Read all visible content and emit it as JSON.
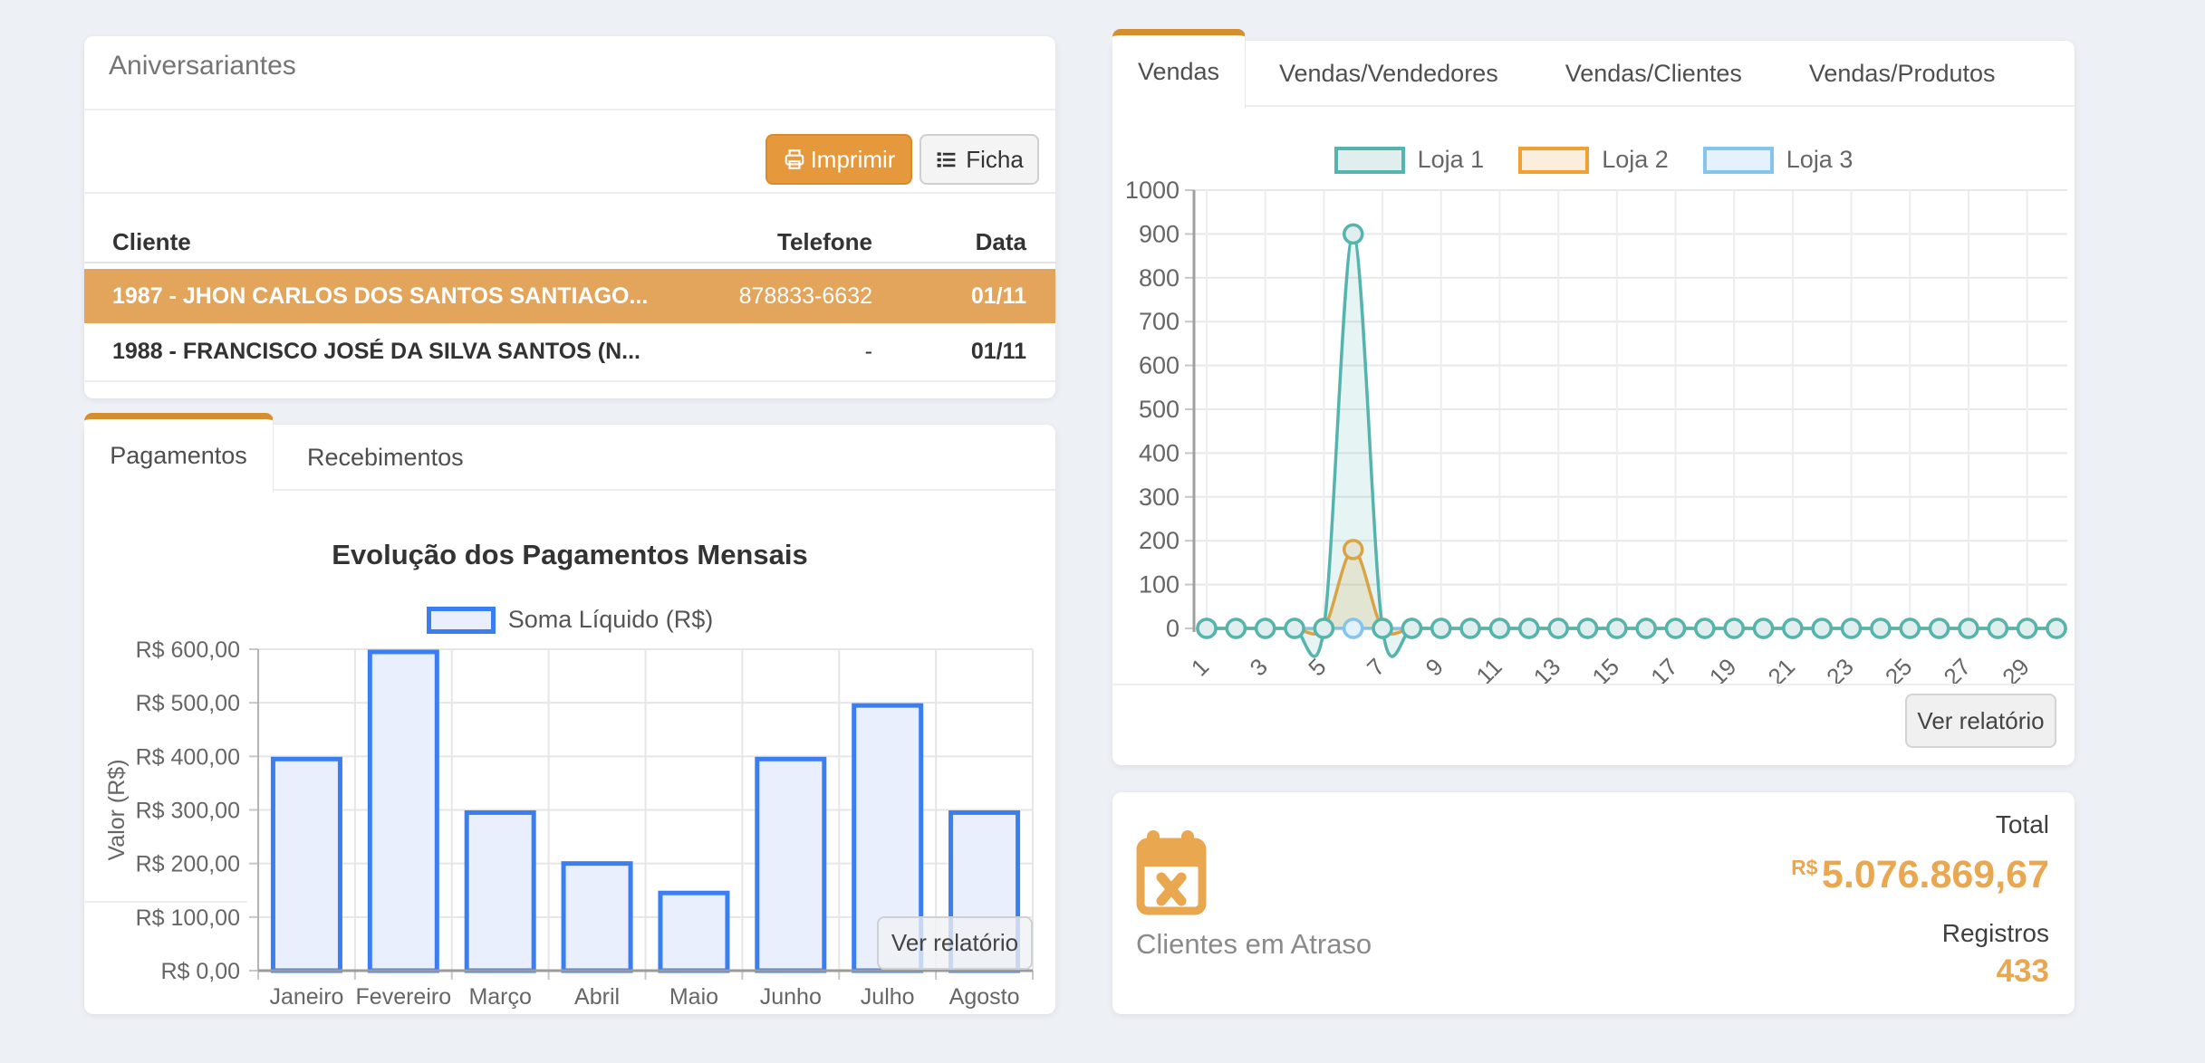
{
  "page": {
    "background": "#edf0f5",
    "accent_orange": "#d68f2f"
  },
  "birthdays": {
    "title": "Aniversariantes",
    "print_label": "Imprimir",
    "ficha_label": "Ficha",
    "table": {
      "headers": [
        "Cliente",
        "Telefone",
        "Data"
      ],
      "rows": [
        {
          "cliente": "1987 - JHON CARLOS DOS SANTOS SANTIAGO...",
          "telefone": "878833-6632",
          "data": "01/11",
          "selected": true
        },
        {
          "cliente": "1988 - FRANCISCO JOSÉ DA SILVA SANTOS (N...",
          "telefone": "-",
          "data": "01/11",
          "selected": false
        }
      ]
    }
  },
  "payments": {
    "tabs": [
      {
        "label": "Pagamentos",
        "active": true
      },
      {
        "label": "Recebimentos",
        "active": false
      }
    ],
    "report_button": "Ver relatório",
    "chart_data": {
      "type": "bar",
      "title": "Evolução dos Pagamentos Mensais",
      "legend": [
        "Soma Líquido (R$)"
      ],
      "ylabel": "Valor (R$)",
      "categories": [
        "Janeiro",
        "Fevereiro",
        "Março",
        "Abril",
        "Maio",
        "Junho",
        "Julho",
        "Agosto"
      ],
      "values": [
        395,
        595,
        295,
        200,
        145,
        395,
        495,
        295
      ],
      "ylim": [
        0,
        600
      ],
      "ytick_step": 100,
      "yticks": [
        "R$ 0,00",
        "R$ 100,00",
        "R$ 200,00",
        "R$ 300,00",
        "R$ 400,00",
        "R$ 500,00",
        "R$ 600,00"
      ],
      "grid": true,
      "bar_border": "#3b7ef2",
      "bar_fill": "#e9effc"
    }
  },
  "sales": {
    "tabs": [
      "Vendas",
      "Vendas/Vendedores",
      "Vendas/Clientes",
      "Vendas/Produtos"
    ],
    "active_tab": "Vendas",
    "report_button": "Ver relatório",
    "chart_data": {
      "type": "line",
      "x": [
        1,
        2,
        3,
        4,
        5,
        6,
        7,
        8,
        9,
        10,
        11,
        12,
        13,
        14,
        15,
        16,
        17,
        18,
        19,
        20,
        21,
        22,
        23,
        24,
        25,
        26,
        27,
        28,
        29,
        30
      ],
      "xticks": [
        "1",
        "3",
        "5",
        "7",
        "9",
        "11",
        "13",
        "15",
        "17",
        "19",
        "21",
        "23",
        "25",
        "27",
        "29"
      ],
      "ylim": [
        0,
        1000
      ],
      "ytick_step": 100,
      "yticks": [
        "0",
        "100",
        "200",
        "300",
        "400",
        "500",
        "600",
        "700",
        "800",
        "900",
        "1000"
      ],
      "legend_position": "top",
      "grid": true,
      "series": [
        {
          "name": "Loja 1",
          "color": "#55b4ad",
          "marker_fill": "#e0efed",
          "area": "rgba(85,180,173,0.15)",
          "values": [
            0,
            0,
            0,
            0,
            0,
            900,
            0,
            0,
            0,
            0,
            0,
            0,
            0,
            0,
            0,
            0,
            0,
            0,
            0,
            0,
            0,
            0,
            0,
            0,
            0,
            0,
            0,
            0,
            0,
            0
          ]
        },
        {
          "name": "Loja 2",
          "color": "#f0a133",
          "marker_fill": "#fceedd",
          "area": "rgba(240,161,51,0.18)",
          "values": [
            0,
            0,
            0,
            0,
            0,
            180,
            0,
            0,
            0,
            0,
            0,
            0,
            0,
            0,
            0,
            0,
            0,
            0,
            0,
            0,
            0,
            0,
            0,
            0,
            0,
            0,
            0,
            0,
            0,
            0
          ]
        },
        {
          "name": "Loja 3",
          "color": "#85c4ee",
          "marker_fill": "#e3f2fc",
          "area": "rgba(133,196,238,0.15)",
          "values": [
            0,
            0,
            0,
            0,
            0,
            0,
            0,
            0,
            0,
            0,
            0,
            0,
            0,
            0,
            0,
            0,
            0,
            0,
            0,
            0,
            0,
            0,
            0,
            0,
            0,
            0,
            0,
            0,
            0,
            0
          ]
        }
      ]
    }
  },
  "overdue": {
    "title": "Clientes em Atraso",
    "total_label": "Total",
    "currency": "R$",
    "total_value": "5.076.869,67",
    "registros_label": "Registros",
    "registros_value": "433"
  }
}
